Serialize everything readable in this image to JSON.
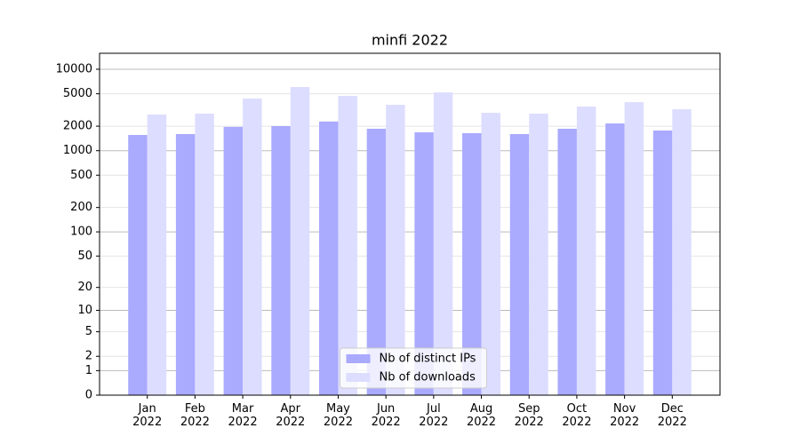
{
  "chart_data": {
    "type": "bar",
    "title": "minfi 2022",
    "scale": "log1p",
    "categories": [
      "Jan\n2022",
      "Feb\n2022",
      "Mar\n2022",
      "Apr\n2022",
      "May\n2022",
      "Jun\n2022",
      "Jul\n2022",
      "Aug\n2022",
      "Sep\n2022",
      "Oct\n2022",
      "Nov\n2022",
      "Dec\n2022"
    ],
    "series": [
      {
        "name": "Nb of distinct IPs",
        "color": "#aaaaff",
        "values": [
          1560,
          1600,
          1960,
          2005,
          2280,
          1860,
          1680,
          1640,
          1600,
          1860,
          2160,
          1770
        ]
      },
      {
        "name": "Nb of downloads",
        "color": "#ddddff",
        "values": [
          2780,
          2850,
          4370,
          6050,
          4710,
          3660,
          5210,
          2920,
          2850,
          3480,
          3950,
          3230
        ]
      }
    ],
    "ylim": [
      0,
      15700
    ],
    "yticks": [
      0,
      1,
      2,
      5,
      10,
      20,
      50,
      100,
      200,
      500,
      1000,
      2000,
      5000,
      10000
    ],
    "grid": true,
    "legend": "lower center"
  }
}
